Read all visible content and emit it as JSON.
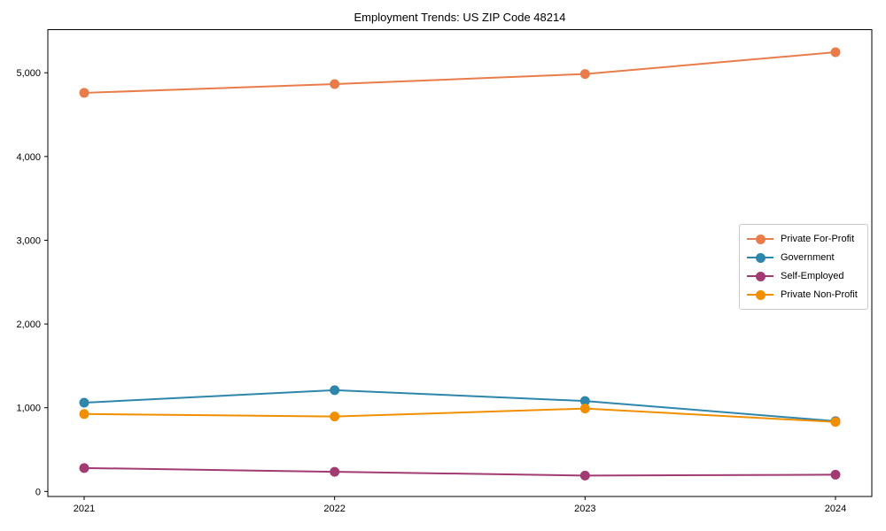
{
  "chart_data": {
    "type": "line",
    "title": "Employment Trends: US ZIP Code 48214",
    "x_categories": [
      "2021",
      "2022",
      "2023",
      "2024"
    ],
    "ytick_values": [
      0,
      1000,
      2000,
      3000,
      4000,
      5000
    ],
    "ytick_labels": [
      "0",
      "1,000",
      "2,000",
      "3,000",
      "4,000",
      "5,000"
    ],
    "ylim": [
      -60,
      5515
    ],
    "grid": false,
    "legend_position": "center right",
    "axis_color": "#000000",
    "series": [
      {
        "name": "Private For-Profit",
        "color": "#E87D4B",
        "values": [
          4760,
          4865,
          4985,
          5245
        ]
      },
      {
        "name": "Government",
        "color": "#2E86AB",
        "values": [
          1060,
          1210,
          1080,
          840
        ]
      },
      {
        "name": "Self-Employed",
        "color": "#A23B72",
        "values": [
          280,
          235,
          190,
          200
        ]
      },
      {
        "name": "Private Non-Profit",
        "color": "#F18F01",
        "values": [
          925,
          895,
          990,
          830
        ]
      }
    ]
  }
}
